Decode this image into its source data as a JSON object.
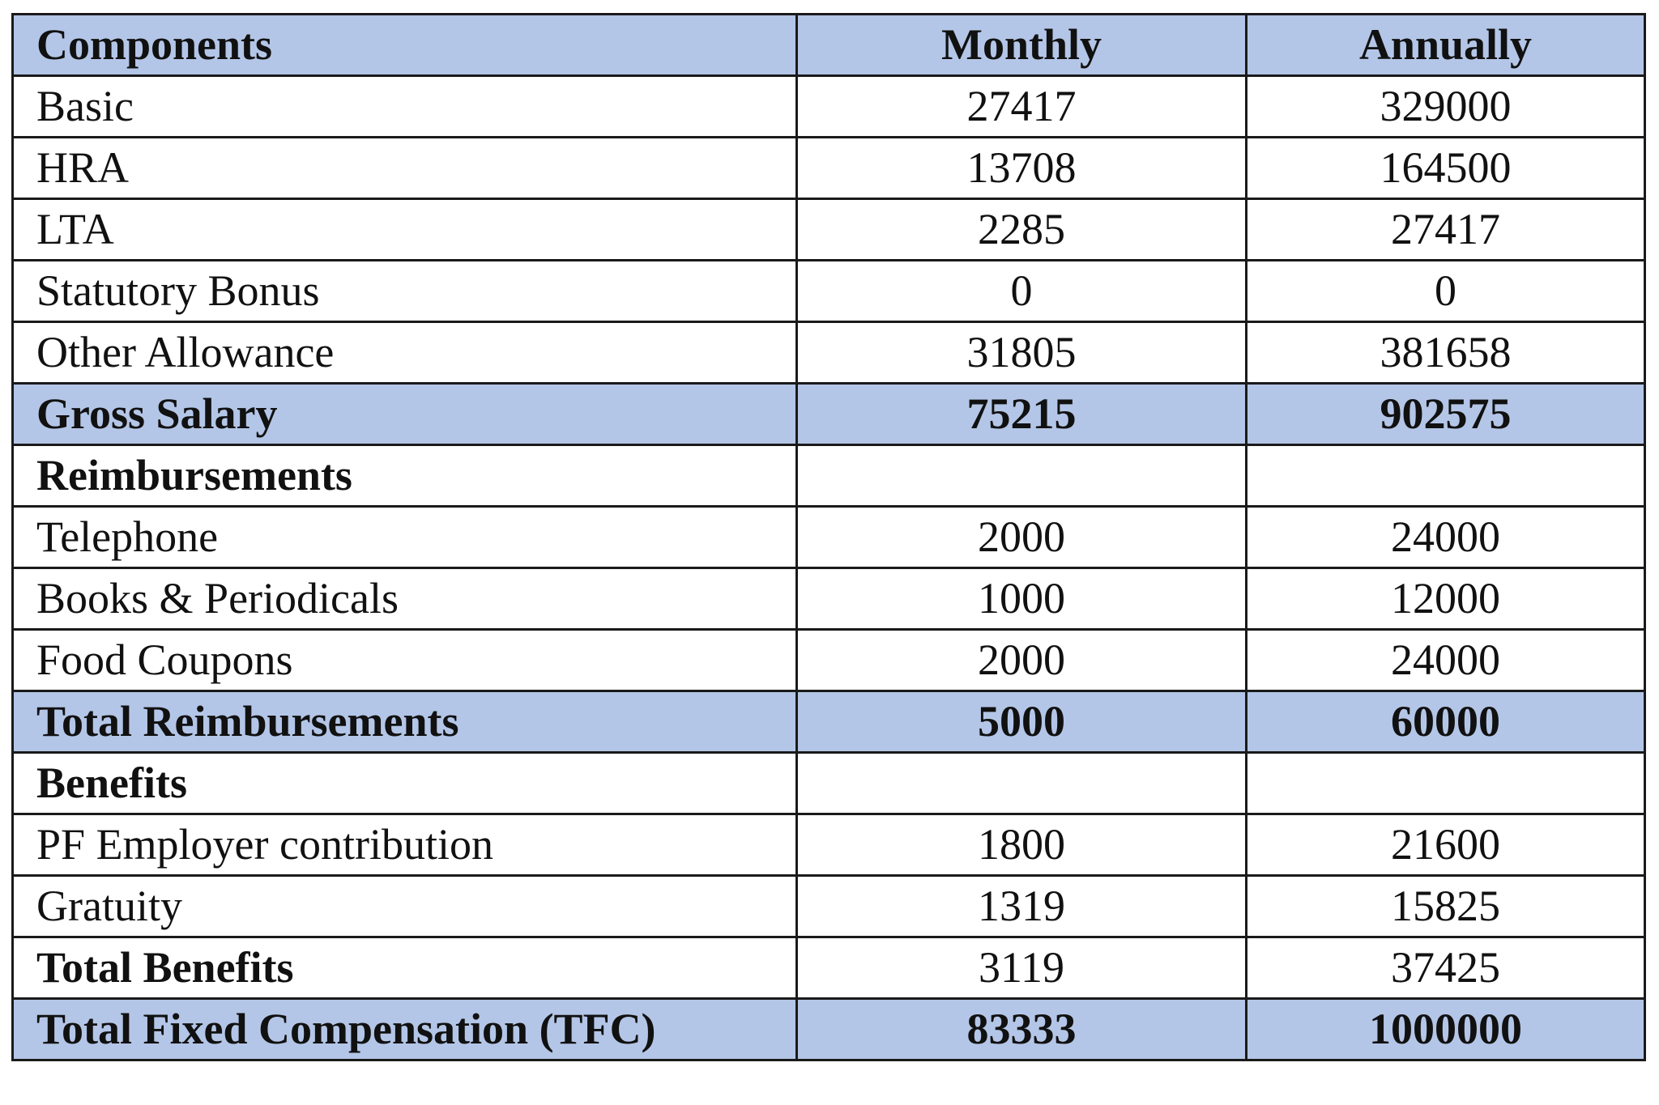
{
  "table": {
    "headers": [
      "Components",
      "Monthly",
      "Annually"
    ],
    "rows": [
      {
        "component": "Basic",
        "monthly": "27417",
        "annually": "329000",
        "style": "normal"
      },
      {
        "component": "HRA",
        "monthly": "13708",
        "annually": "164500",
        "style": "normal"
      },
      {
        "component": "LTA",
        "monthly": "2285",
        "annually": "27417",
        "style": "normal"
      },
      {
        "component": "Statutory Bonus",
        "monthly": "0",
        "annually": "0",
        "style": "normal"
      },
      {
        "component": "Other Allowance",
        "monthly": "31805",
        "annually": "381658",
        "style": "normal"
      },
      {
        "component": "Gross Salary",
        "monthly": "75215",
        "annually": "902575",
        "style": "total-shaded"
      },
      {
        "component": "Reimbursements",
        "monthly": "",
        "annually": "",
        "style": "section"
      },
      {
        "component": "Telephone",
        "monthly": "2000",
        "annually": "24000",
        "style": "normal"
      },
      {
        "component": "Books & Periodicals",
        "monthly": "1000",
        "annually": "12000",
        "style": "normal"
      },
      {
        "component": "Food Coupons",
        "monthly": "2000",
        "annually": "24000",
        "style": "normal"
      },
      {
        "component": "Total Reimbursements",
        "monthly": "5000",
        "annually": "60000",
        "style": "total-shaded"
      },
      {
        "component": "Benefits",
        "monthly": "",
        "annually": "",
        "style": "section"
      },
      {
        "component": "PF Employer contribution",
        "monthly": "1800",
        "annually": "21600",
        "style": "normal"
      },
      {
        "component": "Gratuity",
        "monthly": "1319",
        "annually": "15825",
        "style": "normal"
      },
      {
        "component": "Total Benefits",
        "monthly": "3119",
        "annually": "37425",
        "style": "label-bold"
      },
      {
        "component": "Total Fixed Compensation (TFC)",
        "monthly": "83333",
        "annually": "1000000",
        "style": "total-shaded"
      }
    ]
  },
  "colors": {
    "header_fill": "#b4c6e7",
    "border": "#1a1a1a",
    "text": "#111111"
  }
}
